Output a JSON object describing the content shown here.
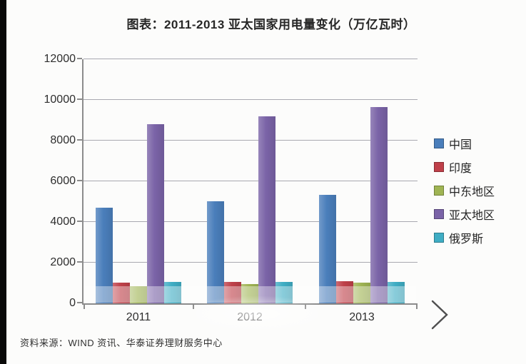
{
  "title": "图表：2011-2013 亚太国家用电量变化（万亿瓦时）",
  "source": "资料来源：WIND 资讯、华泰证券理财服务中心",
  "next_arrow": {
    "icon": "chevron-right-icon"
  },
  "colors": {
    "axis": "#8c8c8c",
    "gridline": "#a9a9b0",
    "text": "#2e2e2e",
    "left_strip": "#090909"
  },
  "chart_data": {
    "type": "bar",
    "title": "图表：2011-2013 亚太国家用电量变化（万亿瓦时）",
    "categories": [
      "2011",
      "2012",
      "2013"
    ],
    "series": [
      {
        "key": "china",
        "name": "中国",
        "color": "#4a7ebb",
        "values": [
          4700,
          5000,
          5350
        ]
      },
      {
        "key": "india",
        "name": "印度",
        "color": "#bf4049",
        "values": [
          1000,
          1050,
          1100
        ]
      },
      {
        "key": "middle-east",
        "name": "中东地区",
        "color": "#9fb453",
        "values": [
          850,
          950,
          1000
        ]
      },
      {
        "key": "asia-pacific",
        "name": "亚太地区",
        "color": "#7a63a7",
        "values": [
          8800,
          9200,
          9650
        ]
      },
      {
        "key": "russia",
        "name": "俄罗斯",
        "color": "#3fadc4",
        "values": [
          1050,
          1050,
          1050
        ]
      }
    ],
    "xlabel": "",
    "ylabel": "",
    "ylim": [
      0,
      12000
    ],
    "yticks": [
      0,
      2000,
      4000,
      6000,
      8000,
      10000,
      12000
    ],
    "grid": true,
    "legend_position": "right"
  }
}
